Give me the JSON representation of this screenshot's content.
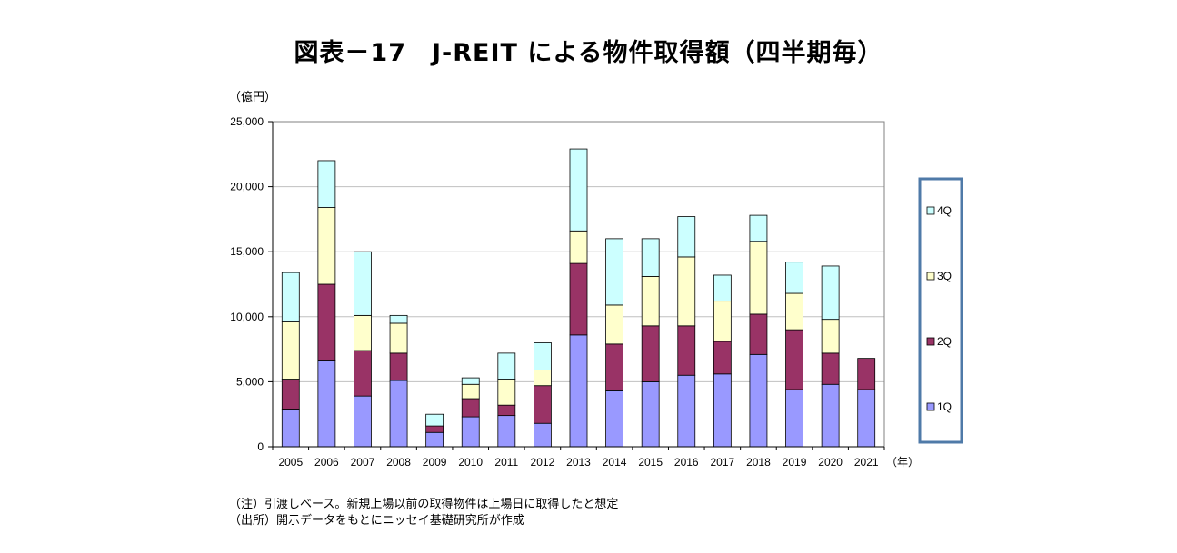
{
  "title": "図表－17　J-REIT による物件取得額（四半期毎）",
  "unit_label": "（億円）",
  "x_unit_label": "（年）",
  "notes": [
    "（注）引渡しベース。新規上場以前の取得物件は上場日に取得したと想定",
    "（出所）開示データをもとにニッセイ基礎研究所が作成"
  ],
  "chart_data": {
    "type": "bar",
    "stacked": true,
    "categories": [
      "2005",
      "2006",
      "2007",
      "2008",
      "2009",
      "2010",
      "2011",
      "2012",
      "2013",
      "2014",
      "2015",
      "2016",
      "2017",
      "2018",
      "2019",
      "2020",
      "2021"
    ],
    "series": [
      {
        "name": "1Q",
        "color": "#9999ff",
        "values": [
          2900,
          6600,
          3900,
          5100,
          1100,
          2300,
          2400,
          1800,
          8600,
          4300,
          5000,
          5500,
          5600,
          7100,
          4400,
          4800,
          4400
        ]
      },
      {
        "name": "2Q",
        "color": "#993366",
        "values": [
          2300,
          5900,
          3500,
          2100,
          500,
          1400,
          800,
          2900,
          5500,
          3600,
          4300,
          3800,
          2500,
          3100,
          4600,
          2400,
          2400
        ]
      },
      {
        "name": "3Q",
        "color": "#ffffcc",
        "values": [
          4400,
          5900,
          2700,
          2300,
          0,
          1100,
          2000,
          1200,
          2500,
          3000,
          3800,
          5300,
          3100,
          5600,
          2800,
          2600,
          0
        ]
      },
      {
        "name": "4Q",
        "color": "#ccffff",
        "values": [
          3800,
          3600,
          4900,
          600,
          900,
          500,
          2000,
          2100,
          6300,
          5100,
          2900,
          3100,
          2000,
          2000,
          2400,
          4100,
          0
        ]
      }
    ],
    "ylim": [
      0,
      25000
    ],
    "yticks": [
      0,
      5000,
      10000,
      15000,
      20000,
      25000
    ],
    "ytick_labels": [
      "0",
      "5,000",
      "10,000",
      "15,000",
      "20,000",
      "25,000"
    ],
    "grid": true,
    "legend_position": "right",
    "legend_order": [
      "4Q",
      "3Q",
      "2Q",
      "1Q"
    ],
    "legend_border_color": "#4f7aa8"
  }
}
